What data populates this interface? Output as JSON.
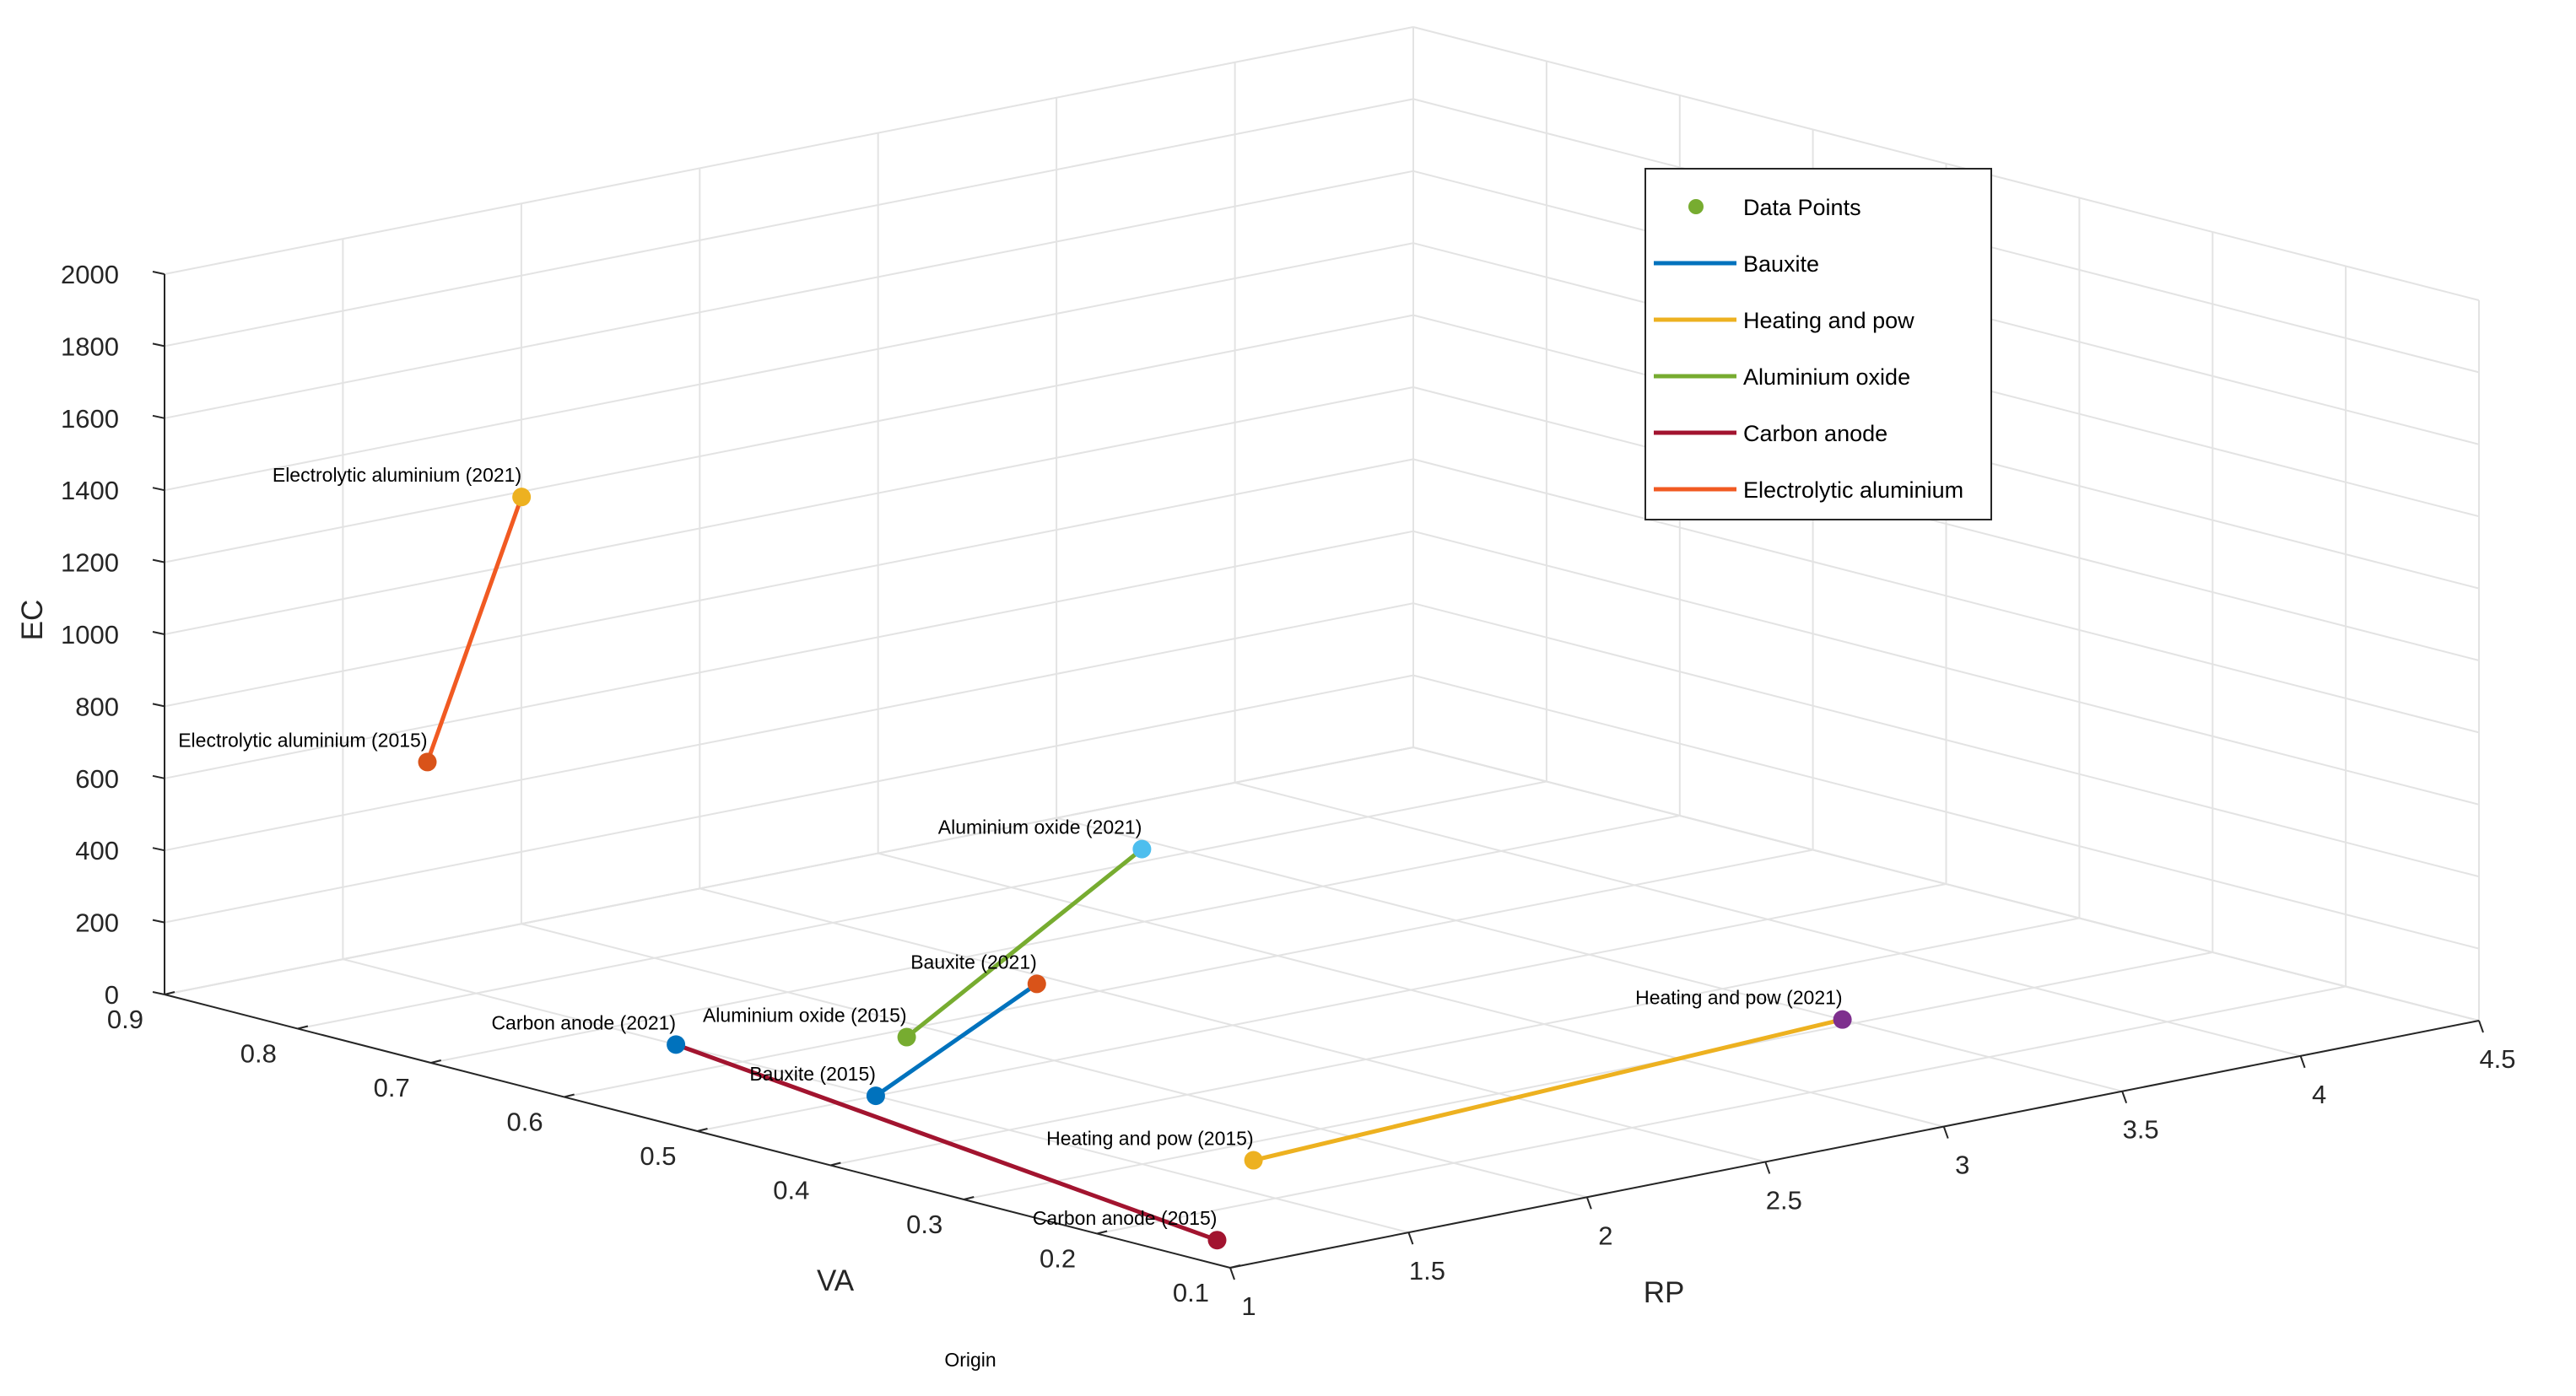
{
  "chart_data": {
    "type": "scatter",
    "title": "",
    "xlabel": "RP",
    "ylabel": "VA",
    "zlabel": "EC",
    "caption": "Origin",
    "xlim": [
      1,
      4.5
    ],
    "ylim": [
      0.1,
      0.9
    ],
    "zlim": [
      0,
      2000
    ],
    "xticks": [
      "1",
      "1.5",
      "2",
      "2.5",
      "3",
      "3.5",
      "4",
      "4.5"
    ],
    "yticks": [
      "0.1",
      "0.2",
      "0.3",
      "0.4",
      "0.5",
      "0.6",
      "0.7",
      "0.8",
      "0.9"
    ],
    "zticks": [
      "0",
      "200",
      "400",
      "600",
      "800",
      "1000",
      "1200",
      "1400",
      "1600",
      "1800",
      "2000"
    ],
    "grid": true,
    "legend": {
      "position": "top-right",
      "entries": [
        {
          "name": "Data Points",
          "marker": "dot",
          "color": "#77AC30"
        },
        {
          "name": "Bauxite",
          "marker": "line",
          "color": "#0072BD"
        },
        {
          "name": "Heating and pow",
          "marker": "line",
          "color": "#EDB120"
        },
        {
          "name": "Aluminium oxide",
          "marker": "line",
          "color": "#77AC30"
        },
        {
          "name": "Carbon anode",
          "marker": "line",
          "color": "#A2142F"
        },
        {
          "name": "Electrolytic aluminium",
          "marker": "line",
          "color": "#F15A22"
        }
      ]
    },
    "series": [
      {
        "name": "Bauxite",
        "color": "#0072BD",
        "points": [
          {
            "label": "Bauxite (2015)",
            "x": 1.5,
            "y": 0.5,
            "z": 0,
            "color": "#0072BD"
          },
          {
            "label": "Bauxite (2021)",
            "x": 1.69,
            "y": 0.43,
            "z": 340,
            "color": "#D95319"
          }
        ]
      },
      {
        "name": "Heating and pow",
        "color": "#EDB120",
        "points": [
          {
            "label": "Heating and pow (2015)",
            "x": 1.7,
            "y": 0.27,
            "z": 0,
            "color": "#EDB120"
          },
          {
            "label": "Heating and pow (2021)",
            "x": 3.5,
            "y": 0.31,
            "z": 0,
            "color": "#7E2F8E"
          }
        ]
      },
      {
        "name": "Aluminium oxide",
        "color": "#77AC30",
        "points": [
          {
            "label": "Aluminium oxide (2015)",
            "x": 1.4,
            "y": 0.45,
            "z": 230,
            "color": "#77AC30"
          },
          {
            "label": "Aluminium oxide (2021)",
            "x": 1.91,
            "y": 0.41,
            "z": 690,
            "color": "#4DBEEE"
          }
        ]
      },
      {
        "name": "Carbon anode",
        "color": "#A2142F",
        "points": [
          {
            "label": "Carbon anode (2021)",
            "x": 1.5,
            "y": 0.65,
            "z": 0,
            "color": "#0072BD"
          },
          {
            "label": "Carbon anode (2015)",
            "x": 1.15,
            "y": 0.15,
            "z": 0,
            "color": "#A2142F"
          }
        ]
      },
      {
        "name": "Electrolytic aluminium",
        "color": "#F15A22",
        "points": [
          {
            "label": "Electrolytic aluminium (2015)",
            "x": 1.55,
            "y": 0.85,
            "z": 585,
            "color": "#D95319"
          },
          {
            "label": "Electrolytic aluminium (2021)",
            "x": 1.59,
            "y": 0.79,
            "z": 1370,
            "color": "#EDB120"
          }
        ]
      }
    ]
  }
}
